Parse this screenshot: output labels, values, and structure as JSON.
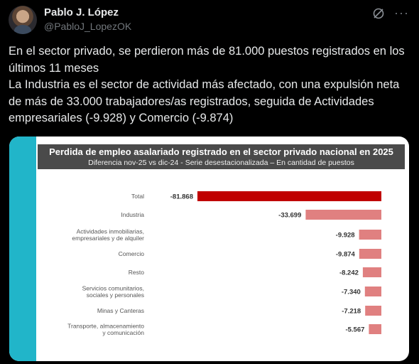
{
  "tweet": {
    "author_name": "Pablo J. López",
    "author_handle": "@PabloJ_LopezOK",
    "text_lines": [
      "En el sector privado, se perdieron más de 81.000 puestos registrados en los",
      "últimos 11 meses",
      "La Industria es el sector de actividad más afectado, con una expulsión neta",
      "de más de 33.000 trabajadores/as registrados, seguida de Actividades",
      "empresariales (-9.928) y Comercio (-9.874)"
    ],
    "icons": {
      "grok": "grok-icon",
      "more": "more-options-icon",
      "avatar": "avatar"
    }
  },
  "colors": {
    "strip": "#21b5c9",
    "title_bar": "#4a4a4a",
    "bar_total": "#c00000",
    "bar_other": "#e08080"
  },
  "chart_data": {
    "type": "bar",
    "orientation": "horizontal",
    "title": "Perdida de empleo asalariado registrado en el sector privado nacional en 2025",
    "subtitle": "Diferencia nov-25 vs dic-24 -  Serie desestacionalizada – En cantidad de puestos",
    "categories": [
      [
        "Total"
      ],
      [
        "Industria"
      ],
      [
        "Actividades inmobiliarias,",
        "empresariales y de alquiler"
      ],
      [
        "Comercio"
      ],
      [
        "Resto"
      ],
      [
        "Servicios comunitarios,",
        "sociales y personales"
      ],
      [
        "Minas y Canteras"
      ],
      [
        "Transporte, almacenamiento",
        "y comunicación"
      ]
    ],
    "values": [
      -81868,
      -33699,
      -9928,
      -9874,
      -8242,
      -7340,
      -7218,
      -5567
    ],
    "value_labels": [
      "-81.868",
      "-33.699",
      "-9.928",
      "-9.874",
      "-8.242",
      "-7.340",
      "-7.218",
      "-5.567"
    ],
    "xlim": [
      -81868,
      0
    ],
    "legend": "none",
    "grid": false
  }
}
